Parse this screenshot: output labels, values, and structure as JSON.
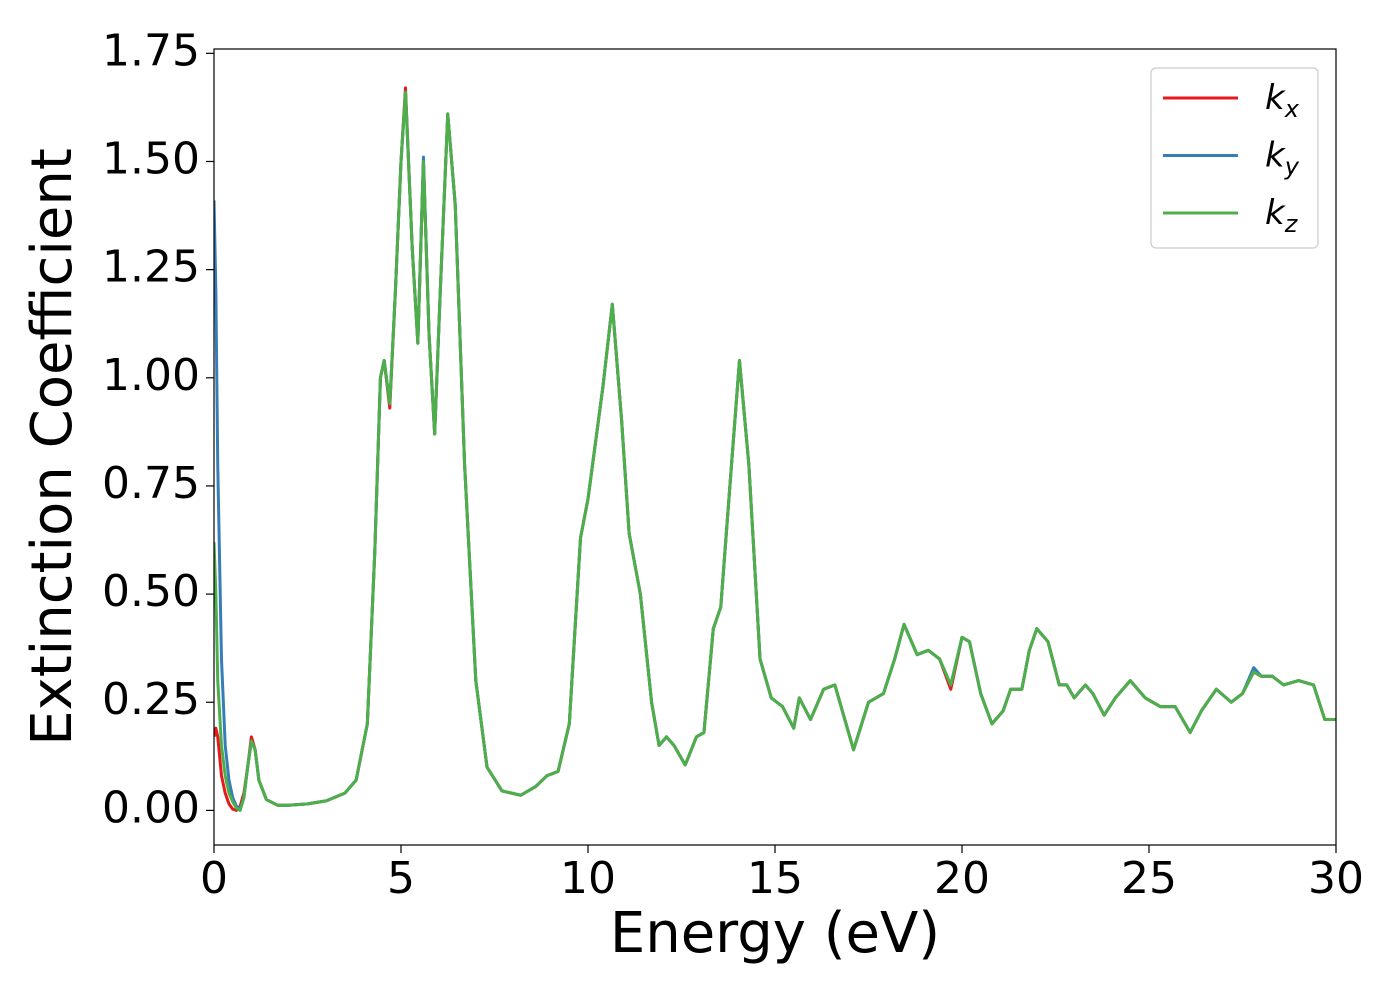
{
  "chart_data": {
    "type": "line",
    "xlabel": "Energy (eV)",
    "ylabel": "Extinction Coefficient",
    "xlim": [
      0,
      30
    ],
    "ylim": [
      -0.08,
      1.76
    ],
    "xticks": [
      0,
      5,
      10,
      15,
      20,
      25,
      30
    ],
    "yticks": [
      {
        "value": 0,
        "label": "0.00"
      },
      0.25,
      {
        "value": 0.5,
        "label": "0.50"
      },
      0.75,
      {
        "value": 1,
        "label": "1.00"
      },
      1.25,
      {
        "value": 1.5,
        "label": "1.50"
      },
      1.75
    ],
    "legend": "upper right",
    "x": [
      0,
      0.05,
      0.1,
      0.2,
      0.3,
      0.4,
      0.5,
      0.6,
      0.7,
      0.8,
      0.9,
      1.0,
      1.1,
      1.2,
      1.4,
      1.7,
      2.0,
      2.5,
      3.0,
      3.5,
      3.8,
      4.1,
      4.3,
      4.45,
      4.55,
      4.7,
      4.85,
      5.0,
      5.12,
      5.3,
      5.45,
      5.6,
      5.75,
      5.9,
      6.05,
      6.25,
      6.45,
      6.7,
      7.0,
      7.3,
      7.7,
      8.2,
      8.6,
      8.9,
      9.2,
      9.5,
      9.8,
      10.0,
      10.2,
      10.4,
      10.65,
      10.9,
      11.1,
      11.4,
      11.7,
      11.9,
      12.1,
      12.3,
      12.6,
      12.9,
      13.1,
      13.35,
      13.55,
      13.75,
      14.05,
      14.3,
      14.6,
      14.9,
      15.2,
      15.5,
      15.65,
      15.95,
      16.3,
      16.6,
      17.1,
      17.5,
      17.9,
      18.2,
      18.45,
      18.8,
      19.1,
      19.4,
      19.7,
      20.0,
      20.2,
      20.5,
      20.8,
      21.1,
      21.3,
      21.6,
      21.8,
      22.0,
      22.3,
      22.6,
      22.8,
      23.0,
      23.3,
      23.5,
      23.8,
      24.1,
      24.5,
      24.9,
      25.3,
      25.7,
      26.1,
      26.4,
      26.8,
      27.2,
      27.5,
      27.8,
      28.0,
      28.3,
      28.6,
      29.0,
      29.4,
      29.7,
      30.0
    ],
    "series": [
      {
        "name": "kx",
        "color": "#e41a1c",
        "values": [
          0.17,
          0.19,
          0.17,
          0.08,
          0.04,
          0.015,
          0.003,
          0.0,
          0.01,
          0.04,
          0.1,
          0.17,
          0.14,
          0.07,
          0.025,
          0.012,
          0.012,
          0.015,
          0.022,
          0.04,
          0.07,
          0.2,
          0.6,
          1.0,
          1.04,
          0.93,
          1.2,
          1.5,
          1.67,
          1.3,
          1.08,
          1.5,
          1.1,
          0.87,
          1.2,
          1.61,
          1.4,
          0.8,
          0.3,
          0.1,
          0.045,
          0.035,
          0.055,
          0.08,
          0.09,
          0.2,
          0.63,
          0.72,
          0.85,
          0.98,
          1.17,
          0.9,
          0.64,
          0.5,
          0.25,
          0.15,
          0.17,
          0.15,
          0.105,
          0.17,
          0.18,
          0.42,
          0.47,
          0.7,
          1.04,
          0.8,
          0.35,
          0.26,
          0.24,
          0.19,
          0.26,
          0.21,
          0.28,
          0.29,
          0.14,
          0.25,
          0.27,
          0.35,
          0.43,
          0.36,
          0.37,
          0.35,
          0.28,
          0.4,
          0.39,
          0.27,
          0.2,
          0.23,
          0.28,
          0.28,
          0.37,
          0.42,
          0.39,
          0.29,
          0.29,
          0.26,
          0.29,
          0.27,
          0.22,
          0.26,
          0.3,
          0.26,
          0.24,
          0.24,
          0.18,
          0.23,
          0.28,
          0.25,
          0.27,
          0.32,
          0.31,
          0.31,
          0.29,
          0.3,
          0.29,
          0.21,
          0.21
        ]
      },
      {
        "name": "ky",
        "color": "#377eb8",
        "values": [
          1.41,
          1.2,
          0.8,
          0.35,
          0.15,
          0.07,
          0.03,
          0.01,
          0.003,
          0.03,
          0.1,
          0.16,
          0.14,
          0.07,
          0.025,
          0.012,
          0.012,
          0.015,
          0.022,
          0.04,
          0.07,
          0.2,
          0.6,
          1.0,
          1.04,
          0.94,
          1.2,
          1.5,
          1.66,
          1.3,
          1.08,
          1.51,
          1.1,
          0.87,
          1.2,
          1.61,
          1.4,
          0.8,
          0.3,
          0.1,
          0.045,
          0.035,
          0.055,
          0.08,
          0.09,
          0.2,
          0.63,
          0.72,
          0.85,
          0.98,
          1.17,
          0.9,
          0.64,
          0.5,
          0.25,
          0.15,
          0.17,
          0.15,
          0.105,
          0.17,
          0.18,
          0.42,
          0.47,
          0.7,
          1.04,
          0.8,
          0.35,
          0.26,
          0.24,
          0.19,
          0.26,
          0.21,
          0.28,
          0.29,
          0.14,
          0.25,
          0.27,
          0.35,
          0.43,
          0.36,
          0.37,
          0.35,
          0.29,
          0.4,
          0.39,
          0.27,
          0.2,
          0.23,
          0.28,
          0.28,
          0.37,
          0.42,
          0.39,
          0.29,
          0.29,
          0.26,
          0.29,
          0.27,
          0.22,
          0.26,
          0.3,
          0.26,
          0.24,
          0.24,
          0.18,
          0.23,
          0.28,
          0.25,
          0.27,
          0.33,
          0.31,
          0.31,
          0.29,
          0.3,
          0.29,
          0.21,
          0.21
        ]
      },
      {
        "name": "kz",
        "color": "#4daf4a",
        "values": [
          0.62,
          0.5,
          0.3,
          0.15,
          0.08,
          0.04,
          0.02,
          0.005,
          0.0,
          0.03,
          0.1,
          0.16,
          0.14,
          0.07,
          0.025,
          0.012,
          0.012,
          0.015,
          0.022,
          0.04,
          0.07,
          0.2,
          0.6,
          1.0,
          1.04,
          0.94,
          1.2,
          1.5,
          1.66,
          1.3,
          1.08,
          1.5,
          1.1,
          0.87,
          1.2,
          1.61,
          1.4,
          0.8,
          0.3,
          0.1,
          0.045,
          0.035,
          0.055,
          0.08,
          0.09,
          0.2,
          0.63,
          0.72,
          0.85,
          0.98,
          1.17,
          0.9,
          0.64,
          0.5,
          0.25,
          0.15,
          0.17,
          0.15,
          0.105,
          0.17,
          0.18,
          0.42,
          0.47,
          0.7,
          1.04,
          0.8,
          0.35,
          0.26,
          0.24,
          0.19,
          0.26,
          0.21,
          0.28,
          0.29,
          0.14,
          0.25,
          0.27,
          0.35,
          0.43,
          0.36,
          0.37,
          0.35,
          0.29,
          0.4,
          0.39,
          0.27,
          0.2,
          0.23,
          0.28,
          0.28,
          0.37,
          0.42,
          0.39,
          0.29,
          0.29,
          0.26,
          0.29,
          0.27,
          0.22,
          0.26,
          0.3,
          0.26,
          0.24,
          0.24,
          0.18,
          0.23,
          0.28,
          0.25,
          0.27,
          0.32,
          0.31,
          0.31,
          0.29,
          0.3,
          0.29,
          0.21,
          0.21
        ]
      }
    ]
  }
}
